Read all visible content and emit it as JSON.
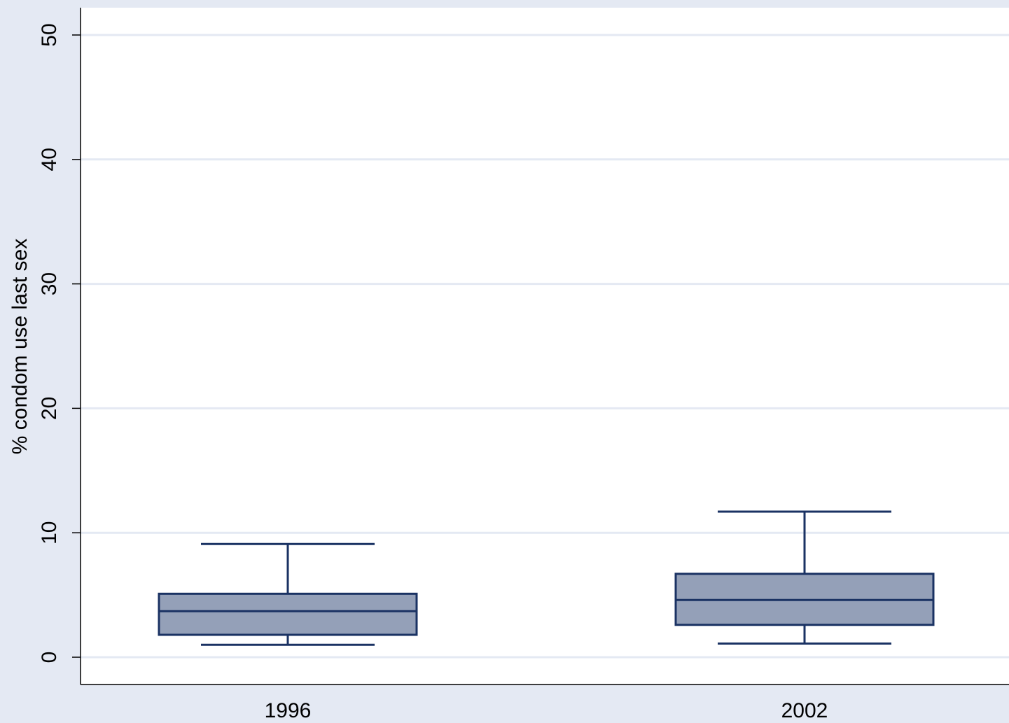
{
  "chart_data": {
    "type": "box",
    "title": "",
    "xlabel": "",
    "ylabel": "% condom use last sex",
    "ylim": [
      0,
      50
    ],
    "yticks": [
      0,
      10,
      20,
      30,
      40,
      50
    ],
    "grid": true,
    "categories": [
      "1996",
      "2002"
    ],
    "boxes": [
      {
        "category": "1996",
        "whisker_low": 1.0,
        "q1": 1.8,
        "median": 3.7,
        "q3": 5.1,
        "whisker_high": 9.1
      },
      {
        "category": "2002",
        "whisker_low": 1.1,
        "q1": 2.6,
        "median": 4.6,
        "q3": 6.7,
        "whisker_high": 11.7
      }
    ],
    "colors": {
      "background": "#e4e9f3",
      "plot_area": "#ffffff",
      "gridline": "#e4e9f3",
      "box_fill": "#94a0b8",
      "box_stroke": "#1a3263"
    }
  }
}
